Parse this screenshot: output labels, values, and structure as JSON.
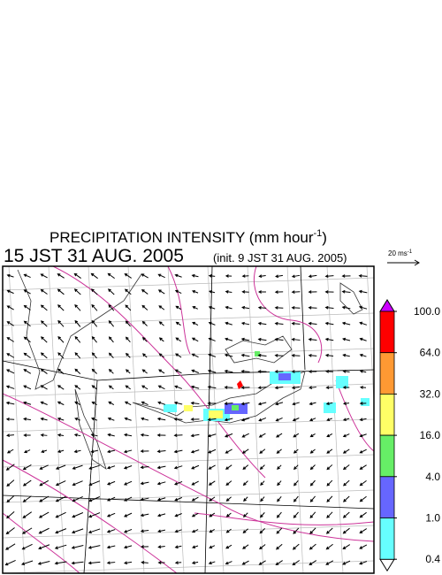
{
  "title": {
    "text": "PRECIPITATION INTENSITY (mm hour",
    "superscript": "-1",
    "close": ")"
  },
  "time": "15 JST 31 AUG. 2005",
  "init": "(init. 9 JST 31 AUG. 2005)",
  "wind_scale": {
    "text": "20 ms",
    "superscript": "-1"
  },
  "colorbar": {
    "levels": [
      {
        "value": 100,
        "label": "100.0"
      },
      {
        "value": 64,
        "label": "64.0"
      },
      {
        "value": 32,
        "label": "32.0"
      },
      {
        "value": 16,
        "label": "16.0"
      },
      {
        "value": 4,
        "label": "4.0"
      },
      {
        "value": 1,
        "label": "1.0"
      },
      0.4
    ],
    "colors": [
      "#ff0000",
      "#ff9933",
      "#ffff66",
      "#66ee66",
      "#6666ff",
      "#66ffff"
    ],
    "over_color": "#cc00ff",
    "under_color": "#ffffff"
  }
}
